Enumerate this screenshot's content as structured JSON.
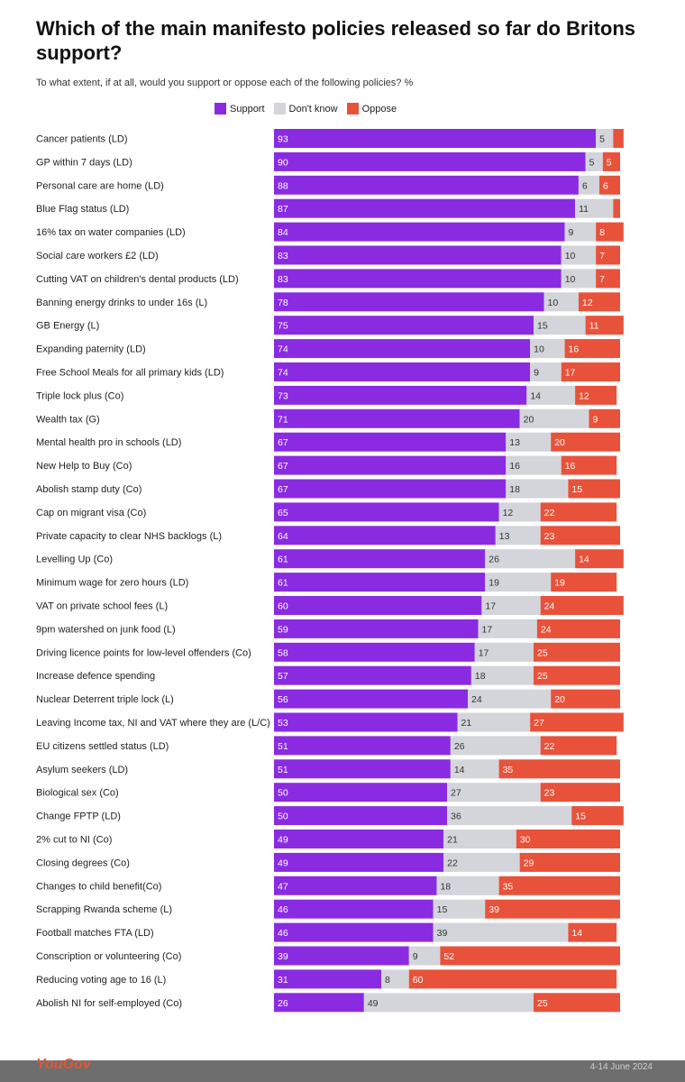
{
  "title": "Which of the main manifesto policies released so far do Britons support?",
  "subtitle": "To what extent, if at all, would you support or oppose each of the following policies? %",
  "footer": {
    "logo": "YouGov",
    "date": "4-14 June 2024"
  },
  "colors": {
    "support": "#8a2be2",
    "dont_know": "#d3d5db",
    "oppose": "#e8523a"
  },
  "chart_data": {
    "type": "bar",
    "orientation": "horizontal",
    "stacked": true,
    "legend": [
      "Support",
      "Don't know",
      "Oppose"
    ],
    "legend_position": "top",
    "grid": false,
    "xlim": [
      0,
      100
    ],
    "categories": [
      "Cancer patients (LD)",
      "GP within 7 days (LD)",
      "Personal care are home (LD)",
      "Blue Flag status (LD)",
      "16% tax on water companies (LD)",
      "Social care workers £2 (LD)",
      "Cutting VAT on children's dental products (LD)",
      "Banning energy drinks to under 16s (L)",
      "GB Energy (L)",
      "Expanding paternity (LD)",
      "Free School Meals for all primary kids (LD)",
      "Triple lock plus (Co)",
      "Wealth tax (G)",
      "Mental health pro in schools (LD)",
      "New Help to Buy (Co)",
      "Abolish stamp duty (Co)",
      "Cap on migrant visa (Co)",
      "Private capacity to clear NHS backlogs (L)",
      "Levelling Up (Co)",
      "Minimum wage for zero hours (LD)",
      "VAT on private school fees (L)",
      "9pm watershed on junk food (L)",
      "Driving licence points for low-level offenders (Co)",
      "Increase defence spending",
      "Nuclear Deterrent triple lock (L)",
      "Leaving Income tax, NI and VAT where they are (L/C)",
      "EU citizens settled status (LD)",
      "Asylum seekers (LD)",
      "Biological sex (Co)",
      "Change FPTP (LD)",
      "2% cut to NI (Co)",
      "Closing degrees (Co)",
      "Changes to child benefit(Co)",
      "Scrapping Rwanda scheme (L)",
      "Football matches FTA (LD)",
      "Conscription or volunteering (Co)",
      "Reducing voting age to 16 (L)",
      "Abolish NI for self-employed (Co)"
    ],
    "series": [
      {
        "name": "Support",
        "values": [
          93,
          90,
          88,
          87,
          84,
          83,
          83,
          78,
          75,
          74,
          74,
          73,
          71,
          67,
          67,
          67,
          65,
          64,
          61,
          61,
          60,
          59,
          58,
          57,
          56,
          53,
          51,
          51,
          50,
          50,
          49,
          49,
          47,
          46,
          46,
          39,
          31,
          26
        ]
      },
      {
        "name": "Don't know",
        "values": [
          5,
          5,
          6,
          11,
          9,
          10,
          10,
          10,
          15,
          10,
          9,
          14,
          20,
          13,
          16,
          18,
          12,
          13,
          26,
          19,
          17,
          17,
          17,
          18,
          24,
          21,
          26,
          14,
          27,
          36,
          21,
          22,
          18,
          15,
          39,
          9,
          8,
          49
        ]
      },
      {
        "name": "Oppose",
        "values": [
          3,
          5,
          6,
          2,
          8,
          7,
          7,
          12,
          11,
          16,
          17,
          12,
          9,
          20,
          16,
          15,
          22,
          23,
          14,
          19,
          24,
          24,
          25,
          25,
          20,
          27,
          22,
          35,
          23,
          15,
          30,
          29,
          35,
          39,
          14,
          52,
          60,
          25
        ]
      }
    ],
    "data_labels": [
      [
        "93",
        "5",
        ""
      ],
      [
        "90",
        "5",
        "5"
      ],
      [
        "88",
        "6",
        "6"
      ],
      [
        "87",
        "11",
        ""
      ],
      [
        "84",
        "9",
        "8"
      ],
      [
        "83",
        "10",
        "7"
      ],
      [
        "83",
        "10",
        "7"
      ],
      [
        "78",
        "10",
        "12"
      ],
      [
        "75",
        "15",
        "11"
      ],
      [
        "74",
        "10",
        "16"
      ],
      [
        "74",
        "9",
        "17"
      ],
      [
        "73",
        "14",
        "12"
      ],
      [
        "71",
        "20",
        "9"
      ],
      [
        "67",
        "13",
        "20"
      ],
      [
        "67",
        "16",
        "16"
      ],
      [
        "67",
        "18",
        "15"
      ],
      [
        "65",
        "12",
        "22"
      ],
      [
        "64",
        "13",
        "23"
      ],
      [
        "61",
        "26",
        "14"
      ],
      [
        "61",
        "19",
        "19"
      ],
      [
        "60",
        "17",
        "24"
      ],
      [
        "59",
        "17",
        "24"
      ],
      [
        "58",
        "17",
        "25"
      ],
      [
        "57",
        "18",
        "25"
      ],
      [
        "56",
        "24",
        "20"
      ],
      [
        "53",
        "21",
        "27"
      ],
      [
        "51",
        "26",
        "22"
      ],
      [
        "51",
        "14",
        "35"
      ],
      [
        "50",
        "27",
        "23"
      ],
      [
        "50",
        "36",
        "15"
      ],
      [
        "49",
        "21",
        "30"
      ],
      [
        "49",
        "22",
        "29"
      ],
      [
        "47",
        "18",
        "35"
      ],
      [
        "46",
        "15",
        "39"
      ],
      [
        "46",
        "39",
        "14"
      ],
      [
        "39",
        "9",
        "52"
      ],
      [
        "31",
        "8",
        "60"
      ],
      [
        "26",
        "49",
        "25"
      ]
    ]
  }
}
